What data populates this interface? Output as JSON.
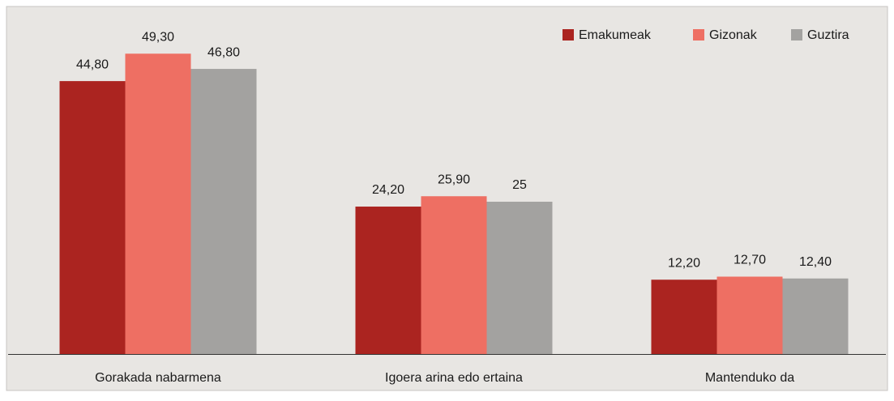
{
  "chart_data": {
    "type": "bar",
    "categories": [
      "Gorakada nabarmena",
      "Igoera arina edo ertaina",
      "Mantenduko da"
    ],
    "series": [
      {
        "name": "Emakumeak",
        "color": "#ab2420",
        "values": [
          44.8,
          24.2,
          12.2
        ],
        "value_labels": [
          "44,80",
          "24,20",
          "12,20"
        ]
      },
      {
        "name": "Gizonak",
        "color": "#ee6f63",
        "values": [
          49.3,
          25.9,
          12.7
        ],
        "value_labels": [
          "49,30",
          "25,90",
          "12,70"
        ]
      },
      {
        "name": "Guztira",
        "color": "#a3a2a0",
        "values": [
          46.8,
          25,
          12.4
        ],
        "value_labels": [
          "46,80",
          "25",
          "12,40"
        ]
      }
    ],
    "legend": "top-right"
  }
}
